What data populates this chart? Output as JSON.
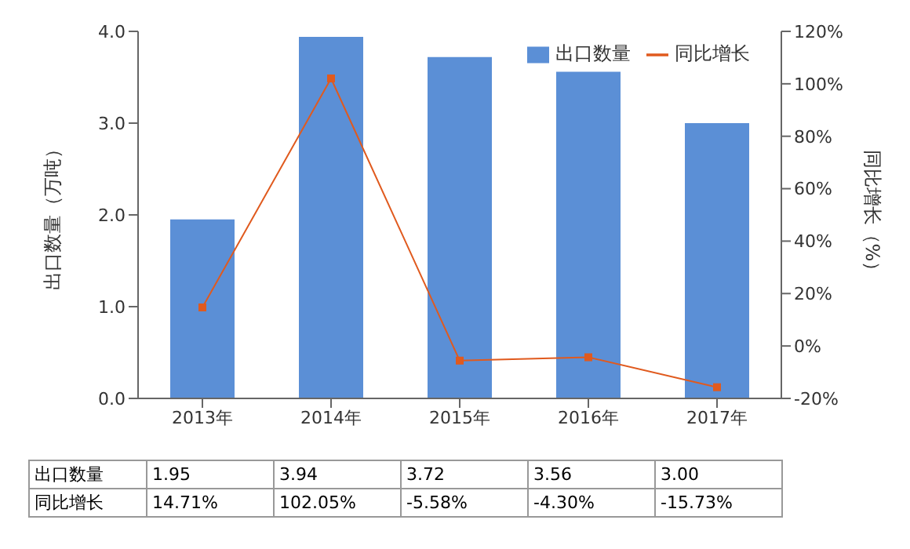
{
  "chart_data": {
    "type": "bar",
    "categories": [
      "2013年",
      "2014年",
      "2015年",
      "2016年",
      "2017年"
    ],
    "ylabel": "出口数量（万吨）",
    "y2label": "同比增长（%）",
    "ylim": [
      0,
      4
    ],
    "yticks": [
      {
        "value": 0,
        "label": "0.0"
      },
      {
        "value": 1,
        "label": "1.0"
      },
      {
        "value": 2,
        "label": "2.0"
      },
      {
        "value": 3,
        "label": "3.0"
      },
      {
        "value": 4,
        "label": "4.0"
      }
    ],
    "y2lim": [
      -20,
      120
    ],
    "y2ticks": [
      {
        "value": -20,
        "label": "-20%"
      },
      {
        "value": 0,
        "label": "0%"
      },
      {
        "value": 20,
        "label": "20%"
      },
      {
        "value": 40,
        "label": "40%"
      },
      {
        "value": 60,
        "label": "60%"
      },
      {
        "value": 80,
        "label": "80%"
      },
      {
        "value": 100,
        "label": "100%"
      },
      {
        "value": 120,
        "label": "120%"
      }
    ],
    "legend": "top right",
    "marker": "square",
    "series": [
      {
        "name": "出口数量",
        "color": "#5b8fd6",
        "values": [
          1.95,
          3.94,
          3.72,
          3.56,
          3.0
        ],
        "value_labels": [
          "1.95",
          "3.94",
          "3.72",
          "3.56",
          "3.00"
        ]
      },
      {
        "name": "同比增长",
        "type": "line",
        "axis": "y2",
        "color": "#e05a1e",
        "values": [
          14.71,
          102.05,
          -5.58,
          -4.3,
          -15.73
        ],
        "value_labels": [
          "14.71%",
          "102.05%",
          "-5.58%",
          "-4.30%",
          "-15.73%"
        ]
      }
    ]
  }
}
